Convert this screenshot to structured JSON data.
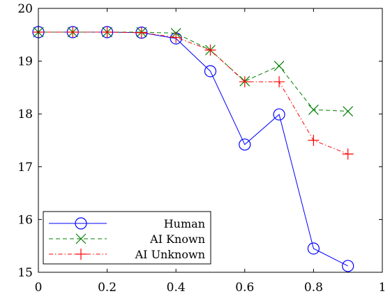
{
  "chart_data": {
    "type": "line",
    "title": "",
    "xlabel": "",
    "ylabel": "",
    "xlim": [
      0,
      1
    ],
    "ylim": [
      15,
      20
    ],
    "x_ticks": [
      0,
      0.2,
      0.4,
      0.6,
      0.8,
      1
    ],
    "x_tick_labels": [
      "0",
      "0.2",
      "0.4",
      "0.6",
      "0.8",
      "1"
    ],
    "y_ticks": [
      15,
      16,
      17,
      18,
      19,
      20
    ],
    "y_tick_labels": [
      "15",
      "16",
      "17",
      "18",
      "19",
      "20"
    ],
    "grid": false,
    "legend_position": "bottom-left",
    "x": [
      0,
      0.1,
      0.2,
      0.3,
      0.4,
      0.5,
      0.6,
      0.7,
      0.8,
      0.9
    ],
    "series": [
      {
        "name": "Human",
        "color": "#0000ff",
        "line_style": "solid",
        "marker": "circle",
        "values": [
          19.55,
          19.55,
          19.55,
          19.54,
          19.43,
          18.81,
          17.42,
          17.99,
          15.45,
          15.12
        ]
      },
      {
        "name": "AI Known",
        "color": "#008000",
        "line_style": "dashed",
        "marker": "x",
        "values": [
          19.55,
          19.55,
          19.55,
          19.55,
          19.53,
          19.21,
          18.62,
          18.91,
          18.08,
          18.05
        ]
      },
      {
        "name": "AI Unknown",
        "color": "#ff0000",
        "line_style": "dash-dot",
        "marker": "plus",
        "values": [
          19.55,
          19.55,
          19.55,
          19.54,
          19.45,
          19.21,
          18.61,
          18.61,
          17.5,
          17.24
        ]
      }
    ]
  }
}
